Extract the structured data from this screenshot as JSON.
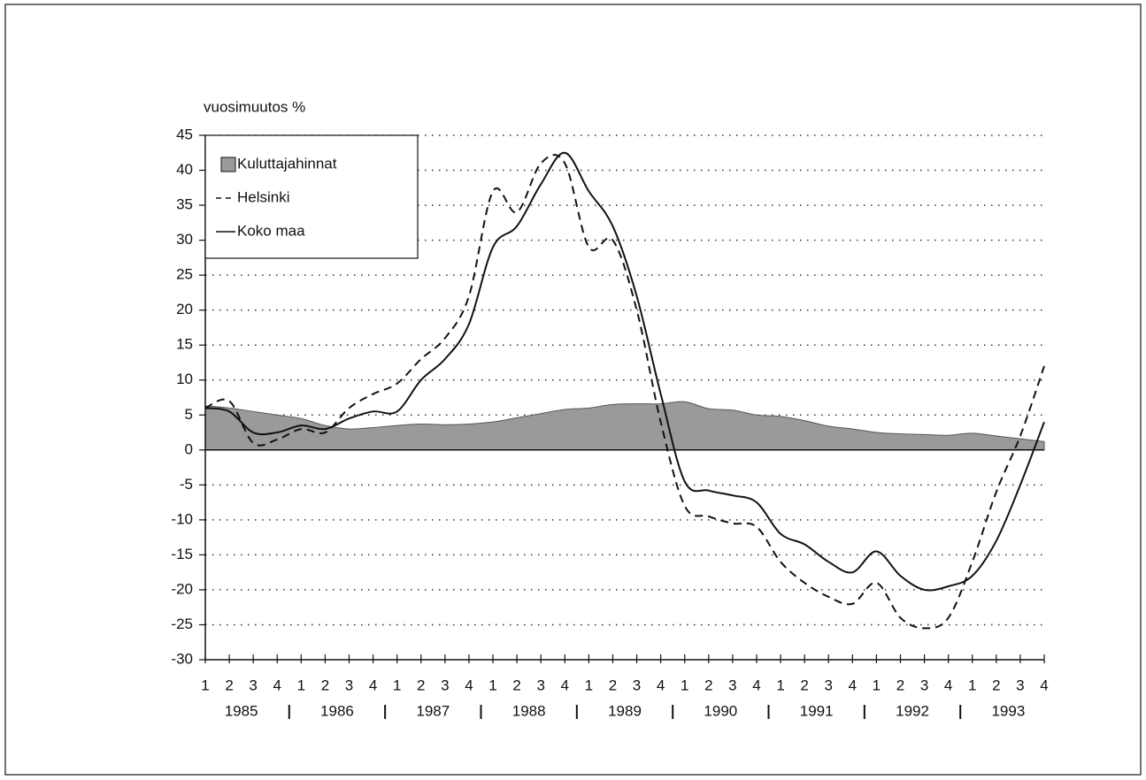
{
  "chart_data": {
    "type": "line",
    "ylabel": "vuosimuutos %",
    "categories": [
      "1",
      "2",
      "3",
      "4",
      "1",
      "2",
      "3",
      "4",
      "1",
      "2",
      "3",
      "4",
      "1",
      "2",
      "3",
      "4",
      "1",
      "2",
      "3",
      "4",
      "1",
      "2",
      "3",
      "4",
      "1",
      "2",
      "3",
      "4",
      "1",
      "2",
      "3",
      "4",
      "1",
      "2",
      "3",
      "4"
    ],
    "years": [
      "1985",
      "1986",
      "1987",
      "1988",
      "1989",
      "1990",
      "1991",
      "1992",
      "1993"
    ],
    "series": [
      {
        "name": "Kuluttajahinnat",
        "style": "area",
        "color": "#9a9a9a",
        "values": [
          6.3,
          6.0,
          5.5,
          5.0,
          4.5,
          3.5,
          3.0,
          3.2,
          3.5,
          3.7,
          3.6,
          3.7,
          4.0,
          4.6,
          5.2,
          5.8,
          6.0,
          6.5,
          6.6,
          6.6,
          6.9,
          5.9,
          5.7,
          5.0,
          4.8,
          4.2,
          3.4,
          3.0,
          2.5,
          2.3,
          2.2,
          2.1,
          2.4,
          2.0,
          1.6,
          1.2
        ]
      },
      {
        "name": "Helsinki",
        "style": "dashed",
        "color": "#111111",
        "values": [
          6.0,
          7.0,
          1.0,
          1.5,
          3.0,
          2.5,
          6.0,
          8.0,
          9.5,
          13,
          16,
          22,
          37,
          34,
          41,
          41,
          29,
          30,
          20,
          4,
          -8,
          -9.5,
          -10.5,
          -11,
          -16,
          -19,
          -21,
          -22,
          -19,
          -24,
          -25.5,
          -24,
          -16,
          -6,
          2,
          12
        ]
      },
      {
        "name": "Koko maa",
        "style": "solid",
        "color": "#111111",
        "values": [
          6.0,
          5.5,
          2.5,
          2.5,
          3.5,
          3.0,
          4.5,
          5.5,
          5.5,
          10,
          13,
          18,
          29,
          32,
          38,
          42.5,
          37,
          32,
          22,
          8,
          -4.5,
          -5.8,
          -6.5,
          -7.5,
          -12,
          -13.5,
          -16,
          -17.5,
          -14.5,
          -18,
          -20,
          -19.5,
          -18,
          -13,
          -5,
          4
        ]
      }
    ],
    "ylim": [
      -30,
      45
    ],
    "yticks": [
      -30,
      -25,
      -20,
      -15,
      -10,
      -5,
      0,
      5,
      10,
      15,
      20,
      25,
      30,
      35,
      40,
      45
    ],
    "grid": true,
    "legend": "upper left"
  }
}
